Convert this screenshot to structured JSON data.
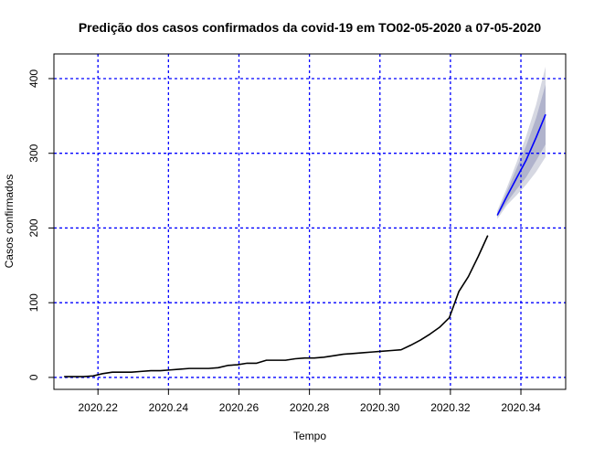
{
  "chart_data": {
    "type": "line",
    "title": "Predição dos casos confirmados da covid-19 em TO02-05-2020 a 07-05-2020",
    "xlabel": "Tempo",
    "ylabel": "Casos confirmados",
    "xlim": [
      2020.2075,
      2020.3527
    ],
    "ylim": [
      -16,
      433
    ],
    "x_ticks": [
      2020.22,
      2020.24,
      2020.26,
      2020.28,
      2020.3,
      2020.32,
      2020.34
    ],
    "x_tick_labels": [
      "2020.22",
      "2020.24",
      "2020.26",
      "2020.28",
      "2020.30",
      "2020.32",
      "2020.34"
    ],
    "y_ticks": [
      0,
      100,
      200,
      300,
      400
    ],
    "y_tick_labels": [
      "0",
      "100",
      "200",
      "300",
      "400"
    ],
    "grid": true,
    "grid_color": "#0000ff",
    "series": [
      {
        "color": "#000000",
        "x": [
          2020.2104,
          2020.2131,
          2020.2159,
          2020.2186,
          2020.2213,
          2020.2241,
          2020.2268,
          2020.2295,
          2020.2322,
          2020.235,
          2020.2377,
          2020.2404,
          2020.2432,
          2020.2459,
          2020.2486,
          2020.2514,
          2020.2541,
          2020.2568,
          2020.2596,
          2020.2623,
          2020.265,
          2020.2678,
          2020.2705,
          2020.2732,
          2020.276,
          2020.2787,
          2020.2814,
          2020.2841,
          2020.2869,
          2020.2896,
          2020.2923,
          2020.2951,
          2020.2978,
          2020.3005,
          2020.3033,
          2020.306,
          2020.3087,
          2020.3115,
          2020.3142,
          2020.3169,
          2020.3197,
          2020.3224,
          2020.3251,
          2020.3279,
          2020.3306
        ],
        "y": [
          1,
          1,
          1,
          2,
          5,
          7,
          7,
          7,
          8,
          9,
          9,
          10,
          11,
          12,
          12,
          12,
          13,
          16,
          17,
          19,
          19,
          23,
          23,
          23,
          25,
          26,
          26,
          27,
          29,
          31,
          32,
          33,
          34,
          35,
          36,
          37,
          43,
          50,
          58,
          67,
          80,
          115,
          135,
          162,
          190
        ]
      },
      {
        "color": "#0000ff",
        "x": [
          2020.3333,
          2020.3361,
          2020.3388,
          2020.3415,
          2020.3443,
          2020.347
        ],
        "y": [
          217,
          243,
          267,
          291,
          321,
          352
        ]
      }
    ],
    "forecast_interval": {
      "x": [
        2020.3333,
        2020.3361,
        2020.3388,
        2020.3415,
        2020.3443,
        2020.347
      ],
      "lo80": [
        215,
        235,
        252,
        268,
        290,
        312
      ],
      "hi80": [
        220,
        250,
        280,
        310,
        347,
        392
      ],
      "lo95": [
        212,
        231,
        244,
        258,
        275,
        295
      ],
      "hi95": [
        223,
        255,
        288,
        323,
        365,
        416
      ],
      "color80": "#b0b3cc",
      "color95": "#d6d8e2"
    }
  }
}
